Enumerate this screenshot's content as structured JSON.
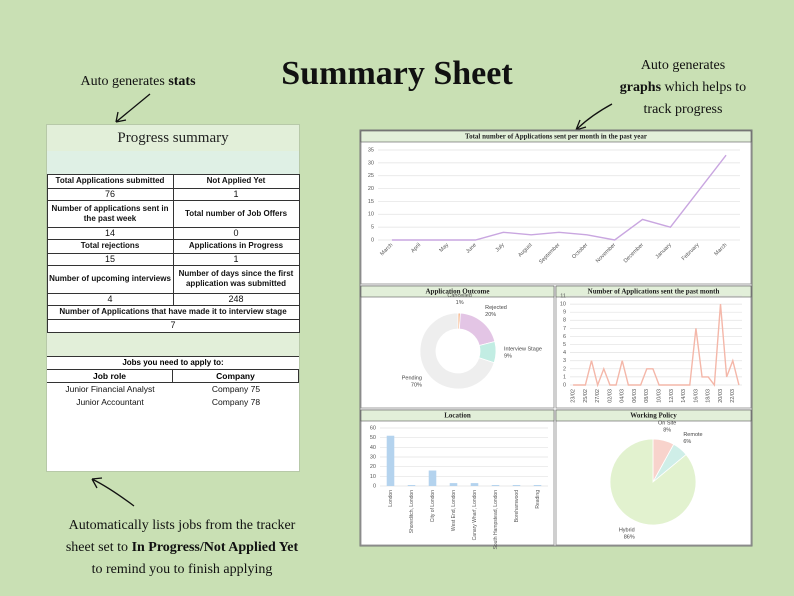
{
  "header": {
    "title": "Summary Sheet"
  },
  "annotations": {
    "stats": [
      [
        {
          "text": "Auto generates "
        },
        {
          "text": "stats",
          "bold": true
        }
      ]
    ],
    "graphs": [
      [
        {
          "text": "Auto generates"
        }
      ],
      [
        {
          "text": "graphs",
          "bold": true
        },
        {
          "text": " which helps to"
        }
      ],
      [
        {
          "text": "track progress"
        }
      ]
    ],
    "jobs": [
      [
        {
          "text": "Automatically lists jobs from the tracker"
        }
      ],
      [
        {
          "text": "sheet set to "
        },
        {
          "text": "In Progress/Not Applied Yet",
          "bold": true
        }
      ],
      [
        {
          "text": "to remind you to finish applying"
        }
      ]
    ]
  },
  "progress": {
    "title": "Progress summary",
    "stats": [
      {
        "label": "Total Applications submitted",
        "value": "76"
      },
      {
        "label": "Not Applied Yet",
        "value": "1"
      },
      {
        "label": "Number of applications sent in the past week",
        "value": "14"
      },
      {
        "label": "Total number of Job Offers",
        "value": "0"
      },
      {
        "label": "Total rejections",
        "value": "15"
      },
      {
        "label": "Applications in Progress",
        "value": "1"
      },
      {
        "label": "Number of upcoming interviews",
        "value": "4"
      },
      {
        "label": "Number of days since the first application was submitted",
        "value": "248"
      },
      {
        "label": "Number of Applications that have made it to interview stage",
        "value": "7"
      }
    ]
  },
  "jobs": {
    "title": "Jobs you need to apply to:",
    "headers": [
      "Job role",
      "Company"
    ],
    "rows": [
      [
        "Junior Financial Analyst",
        "Company 75"
      ],
      [
        "Junior Accountant",
        "Company 78"
      ]
    ]
  },
  "chart_data": [
    {
      "type": "line",
      "title": "Total number of Applications sent per month in the past year",
      "categories": [
        "March",
        "April",
        "May",
        "June",
        "July",
        "August",
        "September",
        "October",
        "November",
        "December",
        "January",
        "February",
        "March"
      ],
      "values": [
        0,
        0,
        0,
        0,
        3,
        2,
        3,
        2,
        0,
        8,
        5,
        19,
        33
      ],
      "color": "#c9a6e0",
      "ylim": [
        0,
        35
      ],
      "yticks": [
        0,
        5,
        10,
        15,
        20,
        25,
        30,
        35
      ],
      "grid": true
    },
    {
      "type": "doughnut",
      "title": "Application Outcome",
      "categories": [
        "Cancelled",
        "Rejected",
        "Interview Stage",
        "Pending"
      ],
      "values": [
        1,
        20,
        9,
        70
      ],
      "value_labels": [
        "1%",
        "20%",
        "9%",
        "70%"
      ],
      "colors": [
        "#f4b183",
        "#e3c5e5",
        "#c2ede3",
        "#eeeeee"
      ]
    },
    {
      "type": "line",
      "title": "Number of Applications sent the past month",
      "categories": [
        "23/02",
        null,
        "25/02",
        null,
        "27/02",
        null,
        "02/03",
        null,
        "04/03",
        null,
        "06/03",
        null,
        "08/03",
        null,
        "10/03",
        null,
        "12/03",
        null,
        "14/03",
        null,
        "16/03",
        null,
        "18/03",
        null,
        "20/03",
        null,
        "22/03",
        null
      ],
      "values": [
        0,
        0,
        0,
        3,
        0,
        2,
        0,
        0,
        3,
        0,
        0,
        0,
        2,
        2,
        0,
        0,
        0,
        0,
        0,
        0,
        7,
        1,
        1,
        0,
        10,
        1,
        3,
        0
      ],
      "color": "#f4b7a9",
      "ylim": [
        0,
        11
      ],
      "yticks": [
        0,
        1,
        2,
        3,
        4,
        5,
        6,
        7,
        8,
        9,
        10,
        11
      ],
      "grid": true
    },
    {
      "type": "bar",
      "title": "Location",
      "categories": [
        "London",
        "Shoreditch, London",
        "City of London",
        "West End, London",
        "Canary Wharf, London",
        "South Hampstead, London",
        "Borehamwood",
        "Reading"
      ],
      "values": [
        52,
        1,
        16,
        3,
        3,
        1,
        1,
        1
      ],
      "color": "#b4d3ee",
      "ylim": [
        0,
        60
      ],
      "yticks": [
        0,
        10,
        20,
        30,
        40,
        50,
        60
      ],
      "grid": true
    },
    {
      "type": "pie",
      "title": "Working Policy",
      "categories": [
        "On Site",
        "Remote",
        "Hybrid"
      ],
      "values": [
        8,
        6,
        86
      ],
      "value_labels": [
        "8%",
        "6%",
        "86%"
      ],
      "colors": [
        "#f8d3cc",
        "#cfeee8",
        "#e2f2cf"
      ]
    }
  ]
}
